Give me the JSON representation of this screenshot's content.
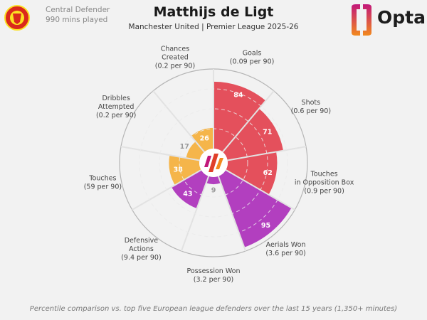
{
  "header": {
    "position": "Central Defender",
    "minutes": "990 mins played",
    "player": "Matthijs de Ligt",
    "team_league": "Manchester United | Premier League 2025-26",
    "brand": "Opta",
    "club_crest": "Manchester United crest"
  },
  "footer": "Percentile comparison vs. top five European league defenders over the last 15 years (1,350+ minutes)",
  "colors": {
    "attacking": "#e4505c",
    "defending": "#b23fbf",
    "possession": "#f5b54a",
    "background": "#f2f2f2"
  },
  "chart_data": {
    "type": "pie",
    "subtype": "polar-bar (pizza) chart",
    "range": [
      0,
      100
    ],
    "grid": "dashed rings",
    "categories": [
      {
        "label": "Goals",
        "rate": "(0.09 per 90)",
        "value": 84,
        "group": "attacking"
      },
      {
        "label": "Shots",
        "rate": "(0.6 per 90)",
        "value": 71,
        "group": "attacking"
      },
      {
        "label": "Touches in Opposition Box",
        "rate": "(0.9 per 90)",
        "value": 62,
        "group": "attacking"
      },
      {
        "label": "Aerials Won",
        "rate": "(3.6 per 90)",
        "value": 95,
        "group": "defending"
      },
      {
        "label": "Possession Won",
        "rate": "(3.2 per 90)",
        "value": 9,
        "group": "defending"
      },
      {
        "label": "Defensive Actions",
        "rate": "(9.4 per 90)",
        "value": 43,
        "group": "defending"
      },
      {
        "label": "Touches",
        "rate": "(59 per 90)",
        "value": 38,
        "group": "possession"
      },
      {
        "label": "Dribbles Attempted",
        "rate": "(0.2 per 90)",
        "value": 17,
        "group": "possession"
      },
      {
        "label": "Chances Created",
        "rate": "(0.2 per 90)",
        "value": 26,
        "group": "possession"
      }
    ]
  }
}
